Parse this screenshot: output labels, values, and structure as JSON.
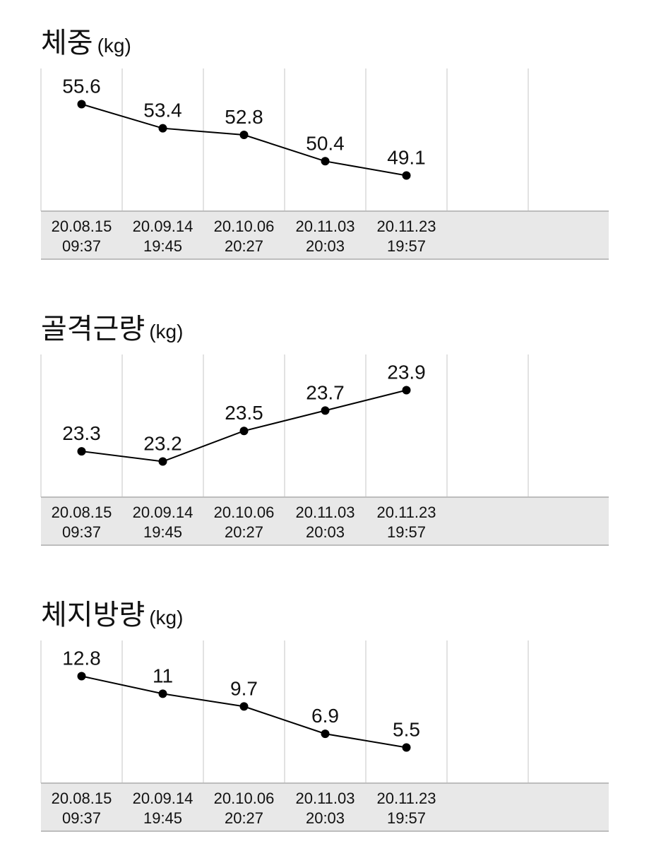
{
  "chart_data": [
    {
      "type": "line",
      "title": "체중",
      "unit": "(kg)",
      "categories": [
        "20.08.15\n09:37",
        "20.09.14\n19:45",
        "20.10.06\n20:27",
        "20.11.03\n20:03",
        "20.11.23\n19:57",
        null,
        null
      ],
      "values": [
        55.6,
        53.4,
        52.8,
        50.4,
        49.1,
        null,
        null
      ],
      "color": "#000000"
    },
    {
      "type": "line",
      "title": "골격근량",
      "unit": "(kg)",
      "categories": [
        "20.08.15\n09:37",
        "20.09.14\n19:45",
        "20.10.06\n20:27",
        "20.11.03\n20:03",
        "20.11.23\n19:57",
        null,
        null
      ],
      "values": [
        23.3,
        23.2,
        23.5,
        23.7,
        23.9,
        null,
        null
      ],
      "color": "#000000"
    },
    {
      "type": "line",
      "title": "체지방량",
      "unit": "(kg)",
      "categories": [
        "20.08.15\n09:37",
        "20.09.14\n19:45",
        "20.10.06\n20:27",
        "20.11.03\n20:03",
        "20.11.23\n19:57",
        null,
        null
      ],
      "values": [
        12.8,
        11.0,
        9.7,
        6.9,
        5.5,
        null,
        null
      ],
      "color": "#000000"
    }
  ]
}
